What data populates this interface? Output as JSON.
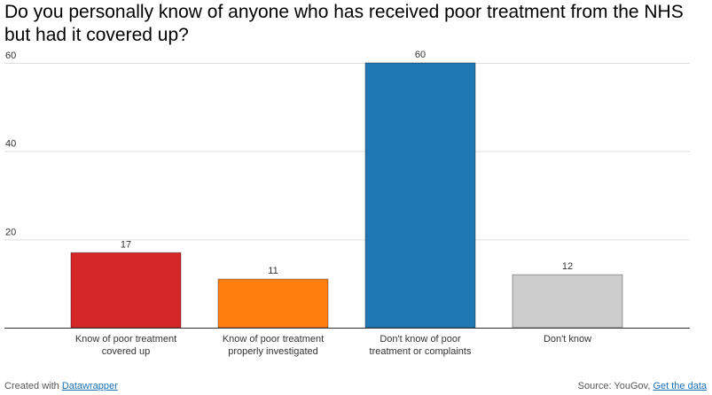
{
  "chart_data": {
    "type": "bar",
    "title": "Do you personally know of anyone who has received poor treatment from the NHS but had it covered up?",
    "categories": [
      [
        "Know of poor treatment",
        "covered up"
      ],
      [
        "Know of poor treatment",
        "properly investigated"
      ],
      [
        "Don't know of poor",
        "treatment or complaints"
      ],
      [
        "Don't know"
      ]
    ],
    "values": [
      17,
      11,
      60,
      12
    ],
    "value_labels": [
      "17",
      "11",
      "60",
      "12"
    ],
    "colors": [
      "#d62728",
      "#ff7f0e",
      "#1f77b4",
      "#cccccc"
    ],
    "ylim": [
      0,
      60
    ],
    "yticks": [
      20,
      40,
      60
    ],
    "ytick_labels": [
      "20",
      "40",
      "60"
    ],
    "xlabel": "",
    "ylabel": "",
    "grid": true
  },
  "footer": {
    "created_prefix": "Created with ",
    "created_link": "Datawrapper",
    "source_prefix": "Source: YouGov, ",
    "source_link": "Get the data"
  }
}
